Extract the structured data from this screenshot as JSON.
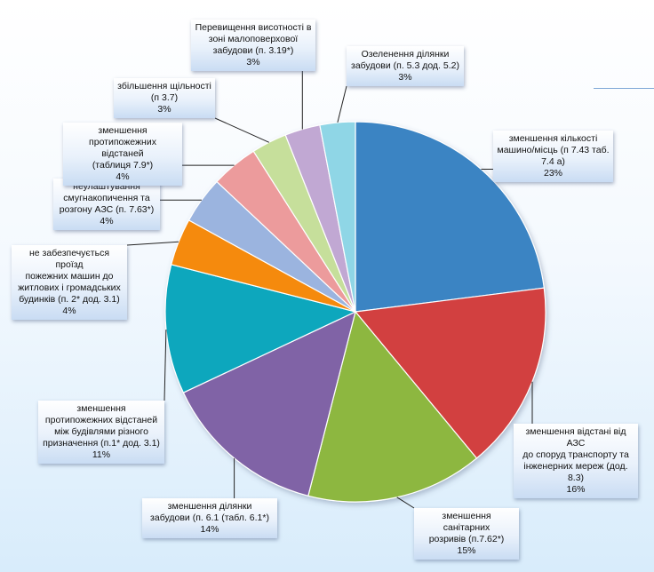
{
  "chart_data": {
    "type": "pie",
    "title": "",
    "slices": [
      {
        "label": "зменшення кількості машино/місць (п 7.43 таб. 7.4 а)",
        "value": 23,
        "value_label": "23%",
        "color": "#3b84c3"
      },
      {
        "label": "зменшення відстані від АЗС до споруд транспорту та інженерних мереж (дод. 8.3)",
        "value": 16,
        "value_label": "16%",
        "color": "#d24141"
      },
      {
        "label": "зменшення санітарних розривів (п.7.62*)",
        "value": 15,
        "value_label": "15%",
        "color": "#8db73f"
      },
      {
        "label": "зменшення ділянки забудови (п. 6.1 (табл. 6.1*)",
        "value": 14,
        "value_label": "14%",
        "color": "#8063a6"
      },
      {
        "label": "зменшення протипожежних відстаней між будівлями різного призначення (п.1* дод. 3.1)",
        "value": 11,
        "value_label": "11%",
        "color": "#0fa7bd"
      },
      {
        "label": "не забезпечується проїзд пожежних машин до житлових і громадських будинків (п. 2* дод. 3.1)",
        "value": 4,
        "value_label": "4%",
        "color": "#f58a0f"
      },
      {
        "label": "неулаштування смугнакопичення та розгону  АЗС (п. 7.63*)",
        "value": 4,
        "value_label": "4%",
        "color": "#9bb4df"
      },
      {
        "label": "зменшення протипожежних відстаней (таблиця 7.9*)",
        "value": 4,
        "value_label": "4%",
        "color": "#ec9b9c"
      },
      {
        "label": "збільшення щільності (п 3.7)",
        "value": 3,
        "value_label": "3%",
        "color": "#c6df9b"
      },
      {
        "label": "Перевищення висотності в зоні малоповерхової забудови (п. 3.19*)",
        "value": 3,
        "value_label": "3%",
        "color": "#c1a8d3"
      },
      {
        "label": "Озеленення ділянки забудови (п. 5.3 дод. 5.2)",
        "value": 3,
        "value_label": "3%",
        "color": "#8fd6e6"
      }
    ]
  },
  "callouts": [
    {
      "lines": "зменшення кількості\nмашино/місць (п 7.43 таб.\n7.4 а)",
      "pct": "23%"
    },
    {
      "lines": "зменшення відстані від АЗС\nдо споруд транспорту та\nінженерних мереж (дод.\n8.3)",
      "pct": "16%"
    },
    {
      "lines": "зменшення санітарних\nрозривів (п.7.62*)",
      "pct": "15%"
    },
    {
      "lines": "зменшення ділянки\nзабудови (п. 6.1 (табл. 6.1*)",
      "pct": "14%"
    },
    {
      "lines": "зменшення\nпротипожежних відстаней\nміж будівлями різного\nпризначення (п.1* дод. 3.1)",
      "pct": "11%"
    },
    {
      "lines": "не забезпечується проїзд\nпожежних машин до\nжитлових і громадських\nбудинків (п. 2* дод. 3.1)",
      "pct": "4%"
    },
    {
      "lines": "неулаштування\nсмугнакопичення та\nрозгону  АЗС (п. 7.63*)",
      "pct": "4%"
    },
    {
      "lines": "зменшення\nпротипожежних відстаней\n(таблиця 7.9*)",
      "pct": "4%"
    },
    {
      "lines": "збільшення щільності\n(п 3.7)",
      "pct": "3%"
    },
    {
      "lines": "Перевищення висотності в\nзоні малоповерхової\nзабудови (п. 3.19*)",
      "pct": "3%"
    },
    {
      "lines": "Озеленення ділянки\nзабудови (п. 5.3 дод. 5.2)",
      "pct": "3%"
    }
  ]
}
